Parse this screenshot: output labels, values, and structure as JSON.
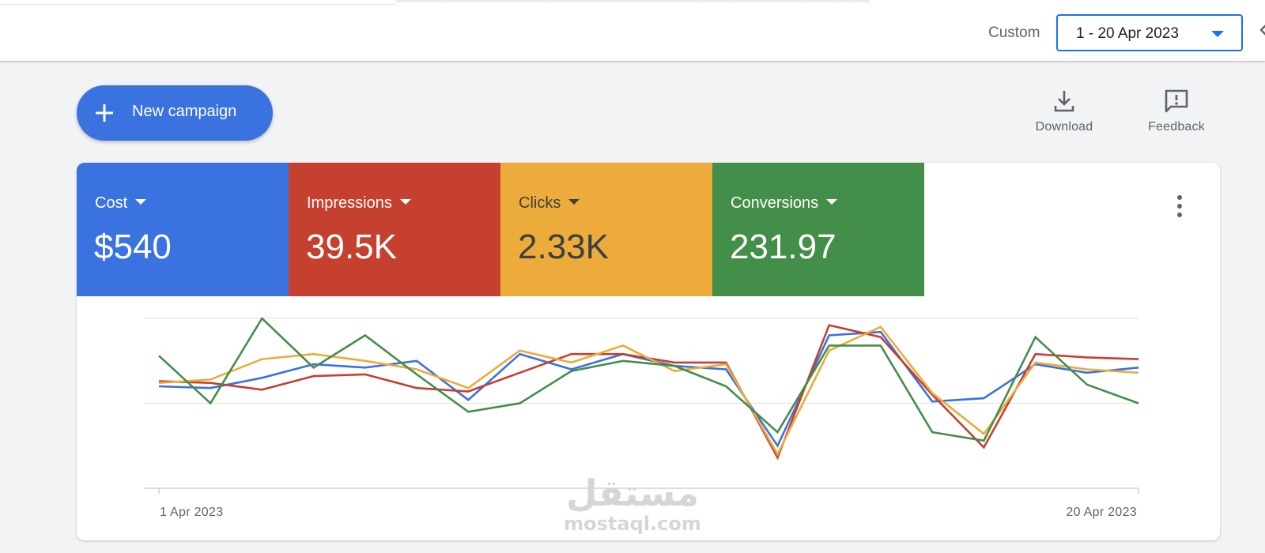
{
  "header": {
    "custom_label": "Custom",
    "date_range": "1 - 20 Apr 2023",
    "accent_color": "#1a73e8"
  },
  "toolbar": {
    "new_campaign_label": "New campaign",
    "new_campaign_color": "#3a72e0",
    "download_label": "Download",
    "feedback_label": "Feedback",
    "icons": [
      "plus-icon",
      "download-icon",
      "feedback-icon",
      "more-vert-icon"
    ]
  },
  "metrics": [
    {
      "label": "Cost",
      "value": "$540",
      "color": "#3a72e0",
      "text_color": "#ffffff"
    },
    {
      "label": "Impressions",
      "value": "39.5K",
      "color": "#c5402f",
      "text_color": "#ffffff"
    },
    {
      "label": "Clicks",
      "value": "2.33K",
      "color": "#ecab3b",
      "text_color": "#3c4043"
    },
    {
      "label": "Conversions",
      "value": "231.97",
      "color": "#438e48",
      "text_color": "#ffffff"
    }
  ],
  "chart_data": {
    "type": "line",
    "x_start_label": "1 Apr 2023",
    "x_end_label": "20 Apr 2023",
    "x": [
      "1 Apr 2023",
      "2 Apr 2023",
      "3 Apr 2023",
      "4 Apr 2023",
      "5 Apr 2023",
      "6 Apr 2023",
      "7 Apr 2023",
      "8 Apr 2023",
      "9 Apr 2023",
      "10 Apr 2023",
      "11 Apr 2023",
      "12 Apr 2023",
      "13 Apr 2023",
      "14 Apr 2023",
      "15 Apr 2023",
      "16 Apr 2023",
      "17 Apr 2023",
      "18 Apr 2023",
      "19 Apr 2023",
      "20 Apr 2023"
    ],
    "ylim": [
      0,
      1
    ],
    "grid": true,
    "legend": "none",
    "series": [
      {
        "color": "#3a72e0",
        "values": [
          0.6,
          0.59,
          0.65,
          0.73,
          0.71,
          0.75,
          0.52,
          0.79,
          0.7,
          0.79,
          0.72,
          0.7,
          0.25,
          0.9,
          0.92,
          0.51,
          0.53,
          0.73,
          0.68,
          0.71
        ]
      },
      {
        "color": "#c5402f",
        "values": [
          0.63,
          0.62,
          0.58,
          0.66,
          0.67,
          0.59,
          0.57,
          0.68,
          0.79,
          0.79,
          0.74,
          0.74,
          0.18,
          0.96,
          0.89,
          0.55,
          0.24,
          0.79,
          0.77,
          0.76
        ]
      },
      {
        "color": "#ecab3b",
        "values": [
          0.62,
          0.64,
          0.76,
          0.79,
          0.75,
          0.7,
          0.59,
          0.81,
          0.74,
          0.84,
          0.69,
          0.73,
          0.2,
          0.81,
          0.95,
          0.56,
          0.32,
          0.74,
          0.7,
          0.68
        ]
      },
      {
        "color": "#438e48",
        "values": [
          0.78,
          0.5,
          1.0,
          0.71,
          0.9,
          0.67,
          0.45,
          0.5,
          0.69,
          0.75,
          0.72,
          0.6,
          0.33,
          0.84,
          0.84,
          0.33,
          0.28,
          0.89,
          0.61,
          0.5
        ]
      }
    ]
  },
  "watermark": {
    "arabic": "مستقل",
    "latin": "mostaql.com"
  }
}
